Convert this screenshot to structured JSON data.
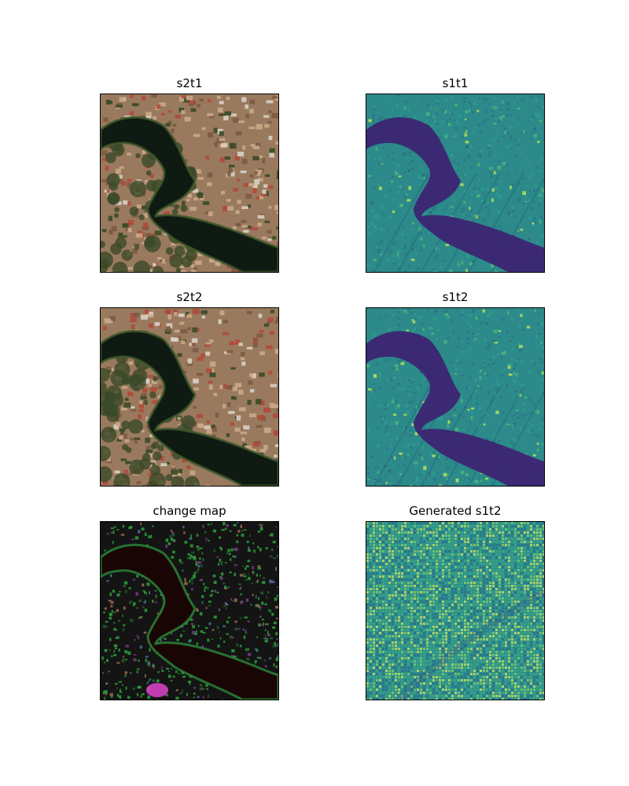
{
  "panels": [
    {
      "id": "s2t1",
      "title": "s2t1",
      "kind": "optical"
    },
    {
      "id": "s1t1",
      "title": "s1t1",
      "kind": "sar"
    },
    {
      "id": "s2t2",
      "title": "s2t2",
      "kind": "optical"
    },
    {
      "id": "s1t2",
      "title": "s1t2",
      "kind": "sar"
    },
    {
      "id": "change-map",
      "title": "change map",
      "kind": "change"
    },
    {
      "id": "generated-s1t2",
      "title": "Generated s1t2",
      "kind": "generated"
    }
  ],
  "colors": {
    "water_optical": "#0e1a12",
    "urban_optical": "#9a7a5e",
    "vegetation_optical": "#3a4a28",
    "water_sar": "#3b2a73",
    "land_sar": "#2c8a8a",
    "bright_sar": "#b6e05a",
    "water_change": "#1a0505",
    "change_green": "#2ea03a",
    "change_magenta": "#d040c0",
    "generated_base": "#2d8f8c",
    "generated_bright": "#c8e060"
  }
}
